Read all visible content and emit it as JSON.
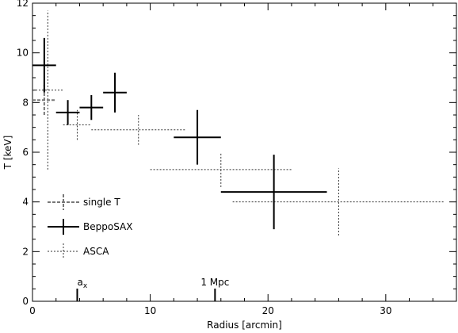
{
  "chart_data": {
    "type": "scatter",
    "xlabel": "Radius [arcmin]",
    "ylabel": "T [keV]",
    "xlim": [
      0,
      36
    ],
    "ylim": [
      0,
      12
    ],
    "xticks": [
      0,
      10,
      20,
      30
    ],
    "yticks": [
      0,
      2,
      4,
      6,
      8,
      10,
      12
    ],
    "grid": false,
    "legend_position": "left",
    "series": [
      {
        "name": "single T",
        "style": "dashed-gray",
        "color": "#777777",
        "points": [
          {
            "x": 1.0,
            "y": 8.1,
            "x_err": 1.0,
            "y_err": 0.6
          }
        ]
      },
      {
        "name": "BeppoSAX",
        "style": "solid-black",
        "color": "#000000",
        "points": [
          {
            "x": 1.0,
            "y": 9.5,
            "x_err": 1.0,
            "y_err": 1.1
          },
          {
            "x": 3.0,
            "y": 7.6,
            "x_err": 1.0,
            "y_err": 0.5
          },
          {
            "x": 5.0,
            "y": 7.8,
            "x_err": 1.0,
            "y_err": 0.5
          },
          {
            "x": 7.0,
            "y": 8.4,
            "x_err": 1.0,
            "y_err": 0.8
          },
          {
            "x": 14.0,
            "y": 6.6,
            "x_err": 2.0,
            "y_err": 1.1
          },
          {
            "x": 20.5,
            "y": 4.4,
            "x_err": 4.5,
            "y_err": 1.5
          }
        ]
      },
      {
        "name": "ASCA",
        "style": "dotted-black",
        "color": "#333333",
        "points": [
          {
            "x": 1.3,
            "y": 8.5,
            "x_err": 1.3,
            "y_err": 3.2
          },
          {
            "x": 3.8,
            "y": 7.1,
            "x_err": 1.2,
            "y_err": 0.6
          },
          {
            "x": 9.0,
            "y": 6.9,
            "x_err": 4.0,
            "y_err": 0.6
          },
          {
            "x": 16.0,
            "y": 5.3,
            "x_err": 6.0,
            "y_err": 0.7
          },
          {
            "x": 26.0,
            "y": 4.0,
            "x_err": 9.0,
            "y_err": 1.35
          }
        ]
      }
    ],
    "annotations": [
      {
        "label": "a",
        "subscript": "x",
        "x": 3.8
      },
      {
        "label": "1 Mpc",
        "x": 15.5
      }
    ]
  }
}
